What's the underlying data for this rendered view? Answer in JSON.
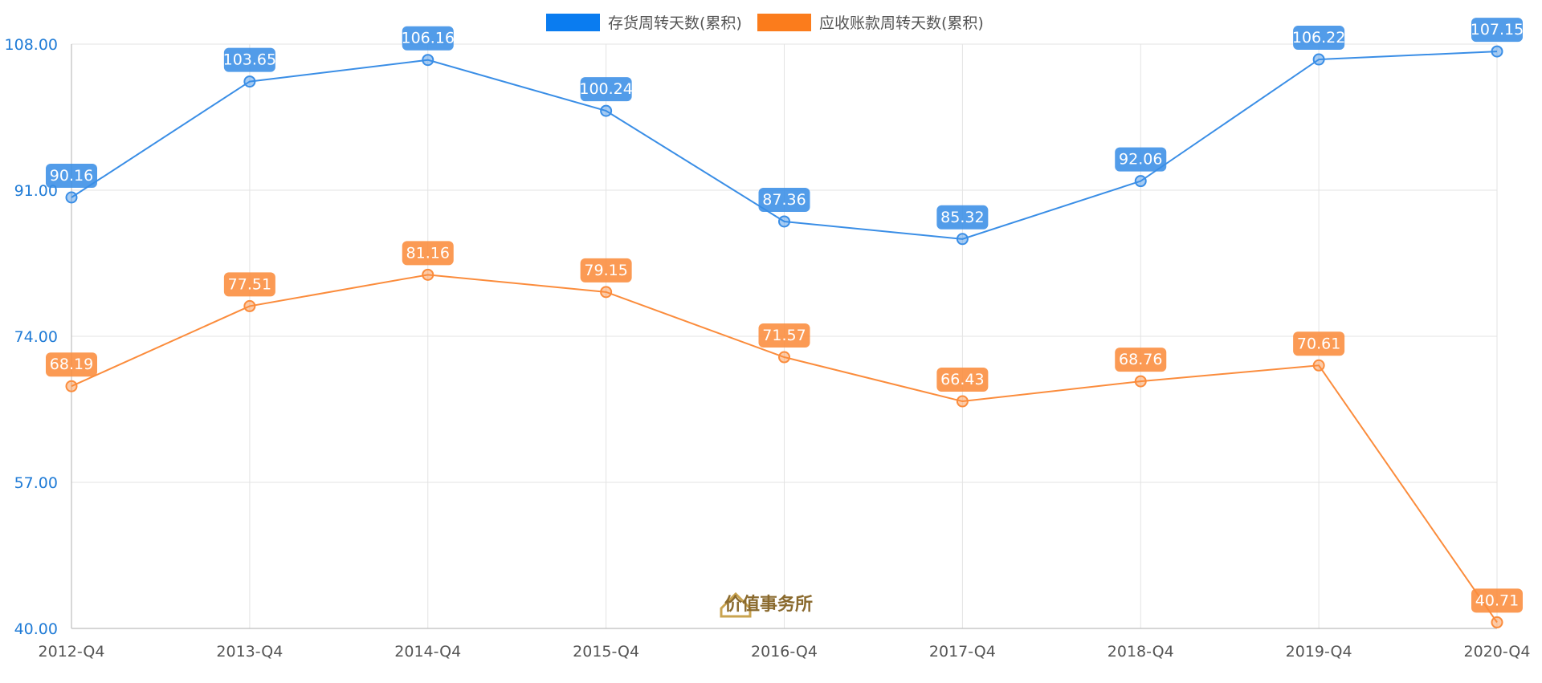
{
  "chart_data": {
    "type": "line",
    "categories": [
      "2012-Q4",
      "2013-Q4",
      "2014-Q4",
      "2015-Q4",
      "2016-Q4",
      "2017-Q4",
      "2018-Q4",
      "2019-Q4",
      "2020-Q4"
    ],
    "series": [
      {
        "name": "存货周转天数(累积)",
        "color": "#3a8ee6",
        "legend_color": "#0a7cf0",
        "values": [
          90.16,
          103.65,
          106.16,
          100.24,
          87.36,
          85.32,
          92.06,
          106.22,
          107.15
        ]
      },
      {
        "name": "应收账款周转天数(累积)",
        "color": "#fb8c3c",
        "legend_color": "#fb7c1c",
        "values": [
          68.19,
          77.51,
          81.16,
          79.15,
          71.57,
          66.43,
          68.76,
          70.61,
          40.71
        ]
      }
    ],
    "yticks": [
      "40.00",
      "57.00",
      "74.00",
      "91.00",
      "108.00"
    ],
    "ylim": [
      40,
      108
    ],
    "grid": true,
    "legend_position": "top-center",
    "title": "",
    "xlabel": "",
    "ylabel": ""
  },
  "watermark": {
    "text": "价值事务所",
    "icon": "house-logo-icon"
  }
}
